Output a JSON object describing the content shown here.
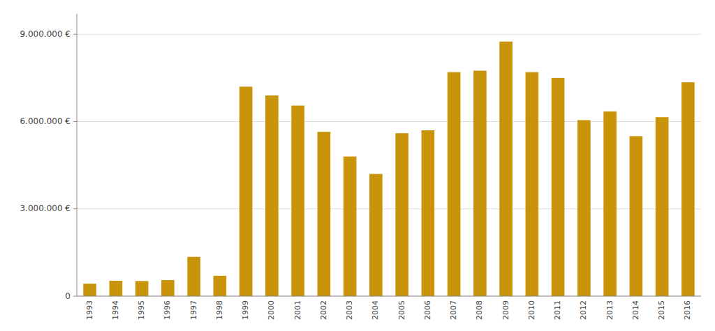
{
  "chart_data": {
    "type": "bar",
    "categories": [
      "1993",
      "1994",
      "1995",
      "1996",
      "1997",
      "1998",
      "1999",
      "2000",
      "2001",
      "2002",
      "2003",
      "2004",
      "2005",
      "2006",
      "2007",
      "2008",
      "2009",
      "2010",
      "2011",
      "2012",
      "2013",
      "2014",
      "2015",
      "2016"
    ],
    "values": [
      430000,
      530000,
      520000,
      550000,
      1350000,
      700000,
      7200000,
      6900000,
      6550000,
      5650000,
      4800000,
      4200000,
      5600000,
      5700000,
      7700000,
      7750000,
      8750000,
      7700000,
      7500000,
      6050000,
      6350000,
      5500000,
      6150000,
      7350000
    ],
    "color": "#C9940A",
    "ylim": [
      0,
      9700000
    ],
    "yticks": [
      0,
      {
        "value": 3000000,
        "label": "3.000.000 €"
      },
      {
        "value": 6000000,
        "label": "6.000.000 €"
      },
      {
        "value": 9000000,
        "label": "9.000.000 €"
      }
    ],
    "grid": true
  }
}
